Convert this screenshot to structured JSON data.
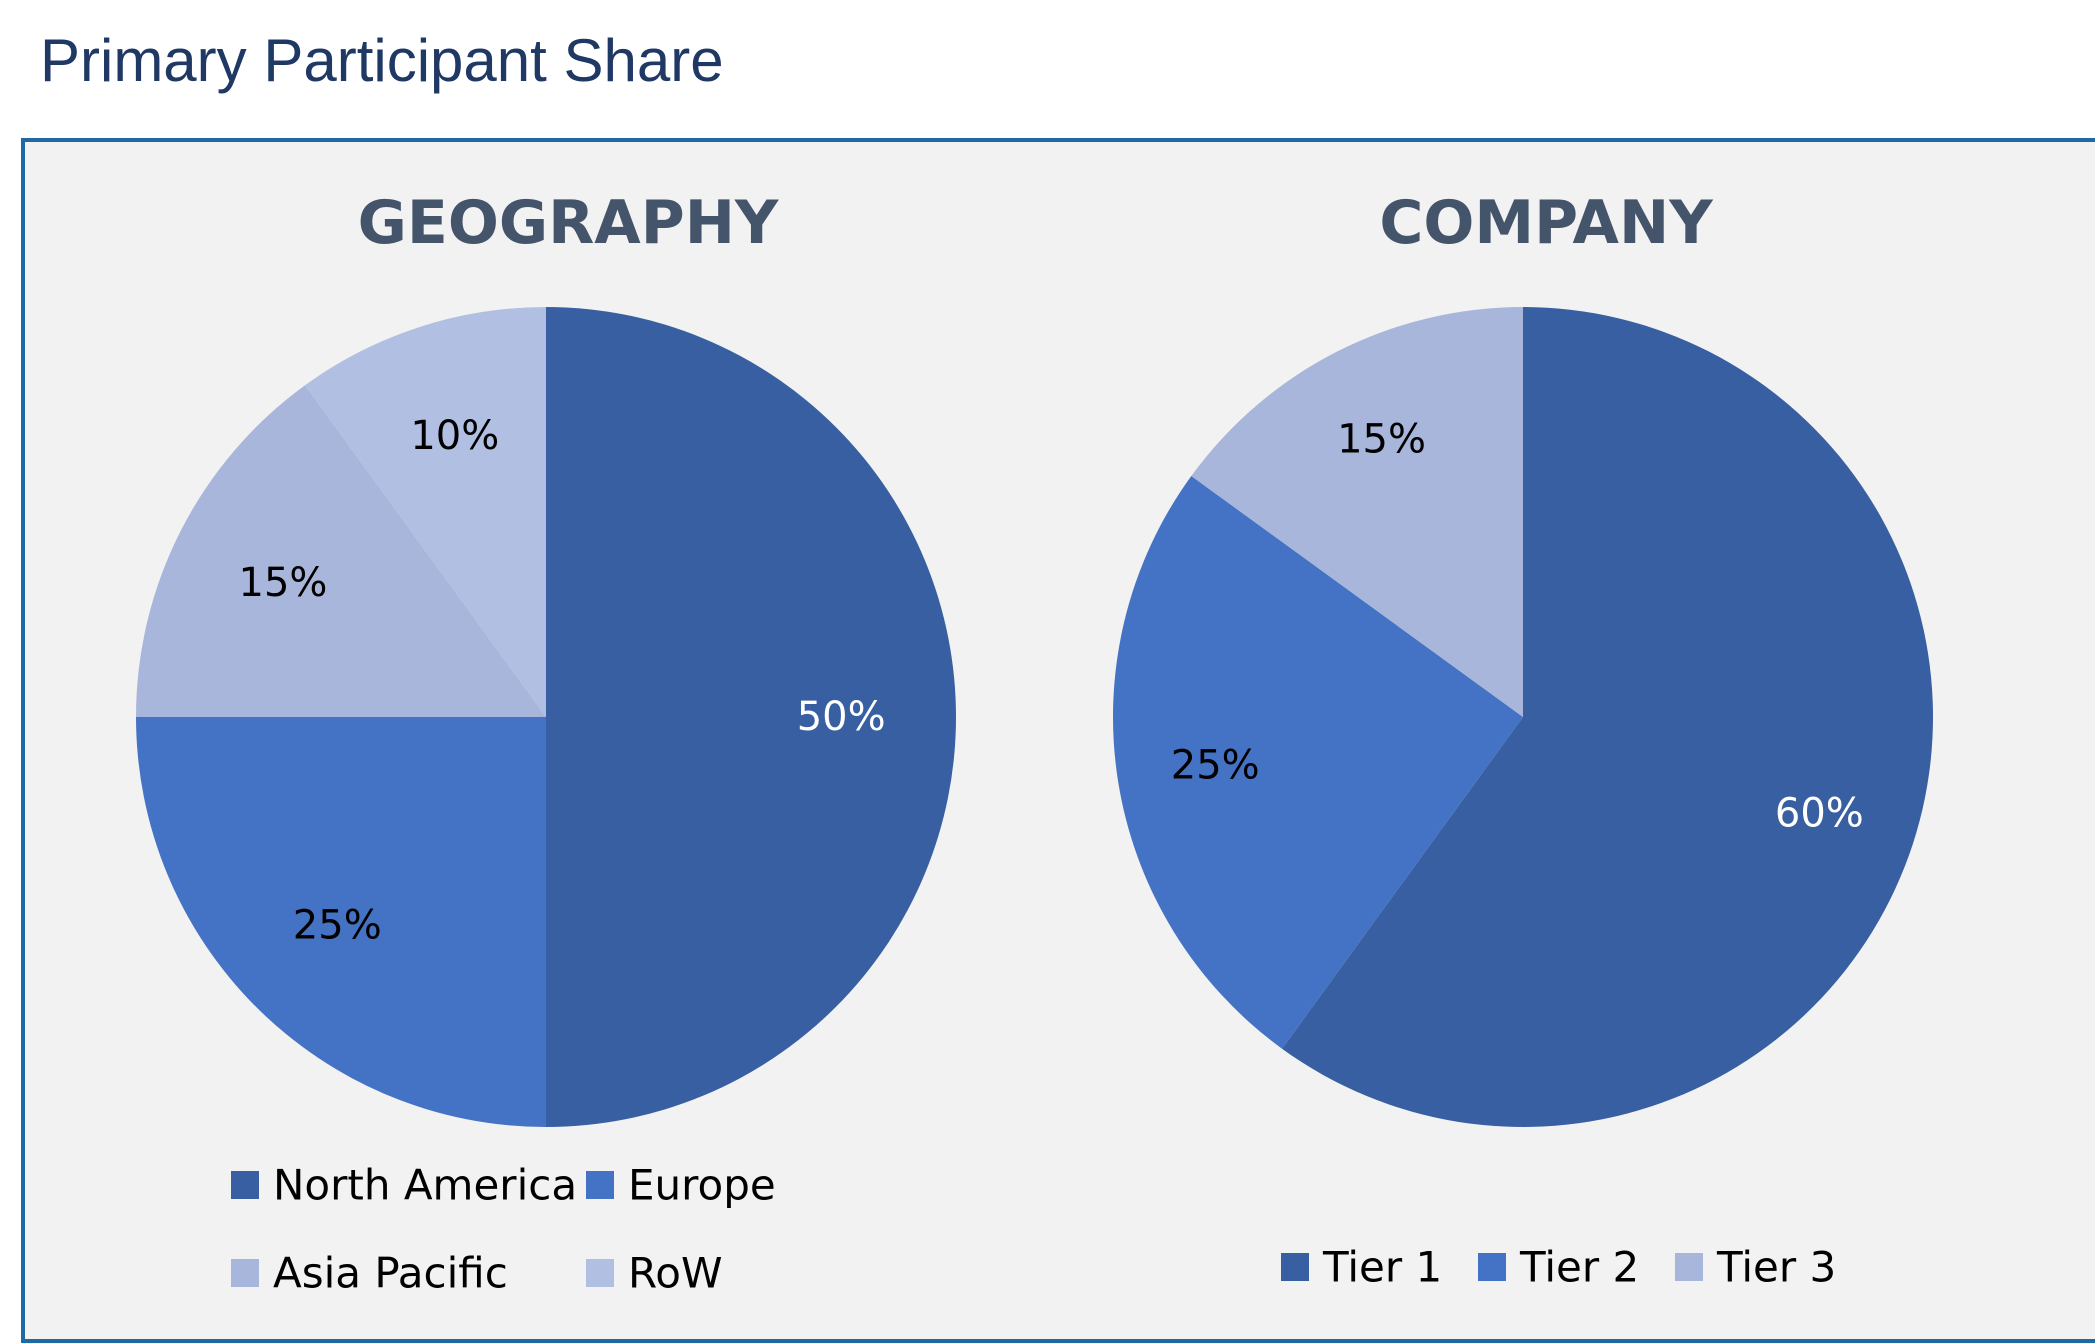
{
  "page": {
    "title": "Primary Participant Share"
  },
  "chart_data": [
    {
      "type": "pie",
      "title": "GEOGRAPHY",
      "categories": [
        "North America",
        "Europe",
        "Asia Pacific",
        "RoW"
      ],
      "values": [
        50,
        25,
        15,
        10
      ],
      "data_labels": [
        "50%",
        "25%",
        "15%",
        "10%"
      ],
      "colors": [
        "#375fa1",
        "#4472c4",
        "#a7b6da",
        "#b1bfe2"
      ],
      "label_colors": [
        "#ffffff",
        "#000000",
        "#000000",
        "#000000"
      ],
      "start_angle": "12 o'clock",
      "direction": "clockwise",
      "legend_position": "bottom"
    },
    {
      "type": "pie",
      "title": "COMPANY",
      "categories": [
        "Tier 1",
        "Tier 2",
        "Tier 3"
      ],
      "values": [
        60,
        25,
        15
      ],
      "data_labels": [
        "60%",
        "25%",
        "15%"
      ],
      "colors": [
        "#375fa1",
        "#4472c4",
        "#a7b6da"
      ],
      "label_colors": [
        "#ffffff",
        "#000000",
        "#000000"
      ],
      "start_angle": "12 o'clock",
      "direction": "clockwise",
      "legend_position": "bottom"
    }
  ]
}
